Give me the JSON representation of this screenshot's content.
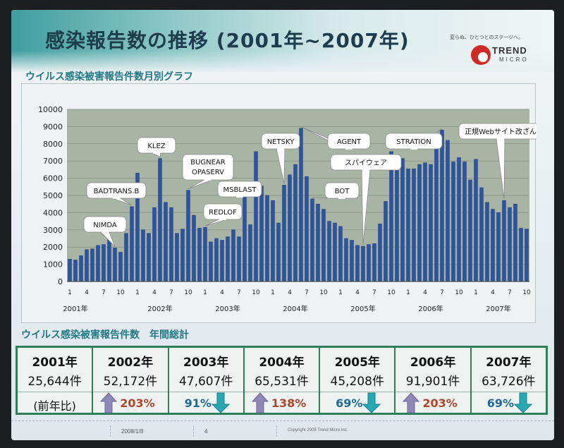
{
  "slide": {
    "title": "感染報告数の推移 (2001年~2007年)",
    "logo": {
      "tagline": "変らぬ、ひとつとのステージへ。",
      "name_line1": "TREND",
      "name_line2": "MICRO"
    },
    "graph_title": "ウイルス感染被害報告件数月別グラフ",
    "table_title": "ウイルス感染被害報告件数　年間総計",
    "footer": {
      "date": "2008/1/8",
      "page": "4",
      "copyright": "Copyright 2008 Trend Micro Inc."
    }
  },
  "chart_data": {
    "type": "bar",
    "ylim": [
      0,
      10000
    ],
    "y_ticks": [
      "0",
      "1000",
      "2000",
      "3000",
      "4000",
      "5000",
      "6000",
      "7000",
      "8000",
      "9000",
      "10000"
    ],
    "month_ticks": [
      "1",
      "4",
      "7",
      "10"
    ],
    "year_labels": [
      "2001年",
      "2002年",
      "2003年",
      "2004年",
      "2005年",
      "2006年",
      "2007年"
    ],
    "values": [
      1300,
      1250,
      1500,
      1850,
      1900,
      2100,
      2150,
      2450,
      1950,
      1700,
      2800,
      4350,
      6300,
      3000,
      2800,
      4300,
      7150,
      4600,
      4300,
      2800,
      3050,
      5300,
      3850,
      3100,
      3150,
      2300,
      2500,
      2400,
      2600,
      3000,
      2600,
      4950,
      3300,
      7550,
      5550,
      5000,
      4700,
      3400,
      5600,
      6200,
      6800,
      8900,
      6100,
      4800,
      4500,
      4200,
      3500,
      3400,
      3200,
      2500,
      2400,
      2100,
      2050,
      2150,
      2200,
      3350,
      4650,
      7550,
      6900,
      7150,
      6550,
      6550,
      6800,
      6900,
      6800,
      7800,
      8800,
      8200,
      6950,
      7200,
      6950,
      5900,
      7100,
      5450,
      4600,
      4200,
      4000,
      4700,
      4300,
      4500,
      3100,
      3050
    ],
    "annotations": [
      {
        "text": "NIMDA",
        "target": 8
      },
      {
        "text": "BADTRANS.B",
        "target": 11
      },
      {
        "text": "KLEZ",
        "target": 16
      },
      {
        "text": "BUGNEAR\nOPASERV",
        "target": 21
      },
      {
        "text": "REDLOF",
        "target": 24
      },
      {
        "text": "MSBLAST",
        "target": 31
      },
      {
        "text": "NETSKY",
        "target": 38
      },
      {
        "text": "AGENT",
        "target": 41
      },
      {
        "text": "BOT",
        "target": 43
      },
      {
        "text": "スパイウェア",
        "target": 52
      },
      {
        "text": "STRATION",
        "target": 66
      },
      {
        "text": "正規Webサイト改ざん",
        "target": 77
      }
    ]
  },
  "table": {
    "prev_label": "(前年比)",
    "years": [
      {
        "year": "2001年",
        "count": "25,644件"
      },
      {
        "year": "2002年",
        "count": "52,172件",
        "pct": "203%",
        "dir": "up"
      },
      {
        "year": "2003年",
        "count": "47,607件",
        "pct": "91%",
        "dir": "down"
      },
      {
        "year": "2004年",
        "count": "65,531件",
        "pct": "138%",
        "dir": "up"
      },
      {
        "year": "2005年",
        "count": "45,208件",
        "pct": "69%",
        "dir": "down"
      },
      {
        "year": "2006年",
        "count": "91,901件",
        "pct": "203%",
        "dir": "up"
      },
      {
        "year": "2007年",
        "count": "63,726件",
        "pct": "69%",
        "dir": "down"
      }
    ]
  },
  "colors": {
    "bar": "#2f53a3",
    "bar_edge": "#1d3a7a",
    "up_arrow": "#8f86b8",
    "down_arrow": "#27a9b3",
    "border": "#2c7f5a"
  }
}
